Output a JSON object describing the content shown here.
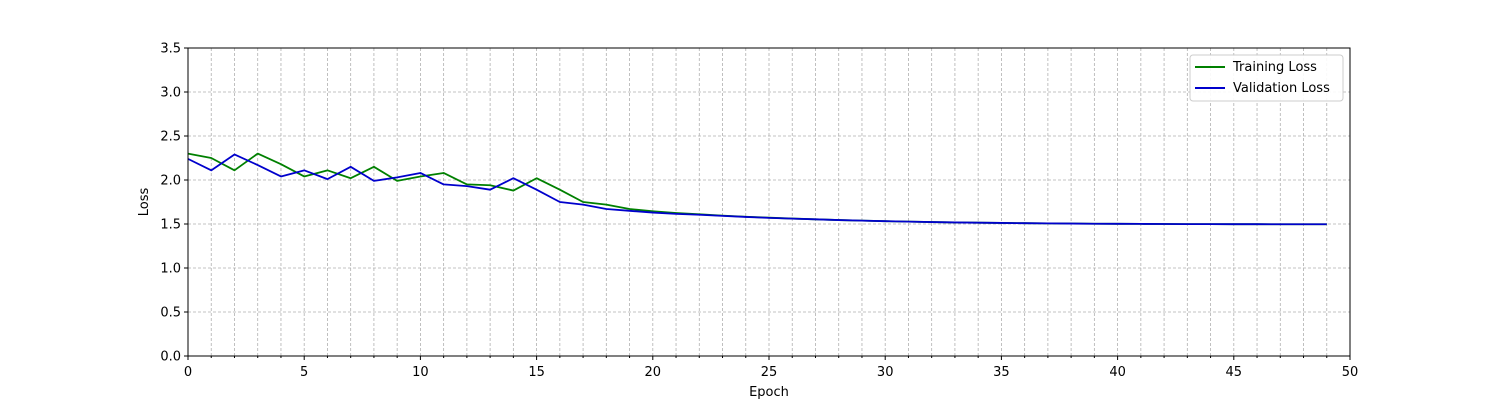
{
  "chart_data": {
    "type": "line",
    "title": "",
    "xlabel": "Epoch",
    "ylabel": "Loss",
    "xlim": [
      0,
      50
    ],
    "ylim": [
      0,
      3.5
    ],
    "xticks": [
      0,
      5,
      10,
      15,
      20,
      25,
      30,
      35,
      40,
      45,
      50
    ],
    "yticks": [
      0.0,
      0.5,
      1.0,
      1.5,
      2.0,
      2.5,
      3.0,
      3.5
    ],
    "grid": true,
    "legend_position": "top-right",
    "x": [
      0,
      1,
      2,
      3,
      4,
      5,
      6,
      7,
      8,
      9,
      10,
      11,
      12,
      13,
      14,
      15,
      16,
      17,
      18,
      19,
      20,
      21,
      22,
      23,
      24,
      25,
      26,
      27,
      28,
      29,
      30,
      31,
      32,
      33,
      34,
      35,
      36,
      37,
      38,
      39,
      40,
      41,
      42,
      43,
      44,
      45,
      46,
      47,
      48,
      49
    ],
    "series": [
      {
        "name": "Training Loss",
        "color": "#008000",
        "values": [
          2.3,
          2.25,
          2.11,
          2.3,
          2.18,
          2.04,
          2.11,
          2.02,
          2.15,
          1.99,
          2.04,
          2.08,
          1.95,
          1.94,
          1.88,
          2.02,
          1.89,
          1.75,
          1.72,
          1.67,
          1.645,
          1.625,
          1.61,
          1.595,
          1.582,
          1.572,
          1.562,
          1.553,
          1.545,
          1.538,
          1.532,
          1.527,
          1.522,
          1.518,
          1.515,
          1.512,
          1.509,
          1.507,
          1.505,
          1.503,
          1.502,
          1.501,
          1.5,
          1.499,
          1.499,
          1.498,
          1.498,
          1.497,
          1.497,
          1.497
        ]
      },
      {
        "name": "Validation Loss",
        "color": "#0000cc",
        "values": [
          2.24,
          2.11,
          2.29,
          2.17,
          2.04,
          2.11,
          2.01,
          2.15,
          1.99,
          2.03,
          2.08,
          1.95,
          1.93,
          1.89,
          2.02,
          1.89,
          1.75,
          1.72,
          1.67,
          1.65,
          1.63,
          1.615,
          1.605,
          1.592,
          1.58,
          1.57,
          1.561,
          1.553,
          1.545,
          1.538,
          1.532,
          1.527,
          1.522,
          1.518,
          1.515,
          1.512,
          1.509,
          1.507,
          1.505,
          1.503,
          1.502,
          1.501,
          1.5,
          1.499,
          1.499,
          1.498,
          1.498,
          1.497,
          1.497,
          1.497
        ]
      }
    ]
  }
}
